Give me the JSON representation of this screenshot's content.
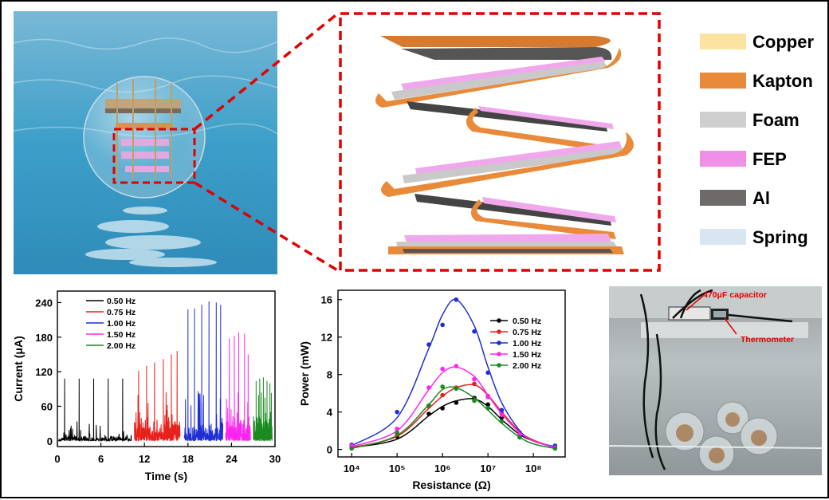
{
  "legend_materials": [
    {
      "label": "Copper",
      "color": "#fbe4a0"
    },
    {
      "label": "Kapton",
      "color": "#e88a3a"
    },
    {
      "label": "Foam",
      "color": "#cfcfcf"
    },
    {
      "label": "FEP",
      "color": "#ef8fe6"
    },
    {
      "label": "Al",
      "color": "#6e6a6a"
    },
    {
      "label": "Spring",
      "color": "#d9e6f2"
    }
  ],
  "photo": {
    "capacitor_label": "470μF capacitor",
    "thermometer_label": "Thermometer"
  },
  "chart_data": [
    {
      "type": "line",
      "xlabel": "Time (s)",
      "ylabel": "Current (μA)",
      "xlim": [
        0,
        30
      ],
      "ylim": [
        -10,
        260
      ],
      "xticks": [
        0,
        6,
        12,
        18,
        24,
        30
      ],
      "yticks": [
        0,
        60,
        120,
        180,
        240
      ],
      "series": [
        {
          "name": "0.50 Hz",
          "color": "#000000",
          "t_range": [
            0.2,
            10.2
          ],
          "peaks": [
            {
              "t": 1.0,
              "v": 108
            },
            {
              "t": 3.0,
              "v": 108
            },
            {
              "t": 5.0,
              "v": 108
            },
            {
              "t": 7.0,
              "v": 108
            },
            {
              "t": 9.0,
              "v": 108
            }
          ]
        },
        {
          "name": "0.75 Hz",
          "color": "#e8201c",
          "t_range": [
            10.6,
            16.9
          ],
          "peaks": [
            {
              "t": 11.2,
              "v": 122
            },
            {
              "t": 12.3,
              "v": 130
            },
            {
              "t": 13.4,
              "v": 136
            },
            {
              "t": 14.6,
              "v": 142
            },
            {
              "t": 15.7,
              "v": 150
            },
            {
              "t": 16.5,
              "v": 156
            }
          ]
        },
        {
          "name": "1.00 Hz",
          "color": "#1f2fd6",
          "t_range": [
            17.5,
            22.8
          ],
          "peaks": [
            {
              "t": 18.0,
              "v": 228
            },
            {
              "t": 18.9,
              "v": 230
            },
            {
              "t": 19.9,
              "v": 236
            },
            {
              "t": 20.9,
              "v": 242
            },
            {
              "t": 21.9,
              "v": 240
            },
            {
              "t": 22.5,
              "v": 236
            }
          ]
        },
        {
          "name": "1.50 Hz",
          "color": "#ff25f0",
          "t_range": [
            23.2,
            26.6
          ],
          "peaks": [
            {
              "t": 23.7,
              "v": 178
            },
            {
              "t": 24.4,
              "v": 182
            },
            {
              "t": 25.0,
              "v": 188
            },
            {
              "t": 25.8,
              "v": 186
            },
            {
              "t": 26.3,
              "v": 150
            }
          ]
        },
        {
          "name": "2.00 Hz",
          "color": "#1b8a20",
          "t_range": [
            27.0,
            29.6
          ],
          "peaks": [
            {
              "t": 27.4,
              "v": 104
            },
            {
              "t": 27.9,
              "v": 108
            },
            {
              "t": 28.4,
              "v": 110
            },
            {
              "t": 28.9,
              "v": 104
            },
            {
              "t": 29.3,
              "v": 100
            }
          ]
        }
      ]
    },
    {
      "type": "line",
      "xscale": "log",
      "xlabel": "Resistance (Ω)",
      "ylabel": "Power (mW)",
      "xlim": [
        5000,
        500000000
      ],
      "ylim": [
        -0.8,
        17
      ],
      "xtick_labels": [
        "10⁴",
        "10⁵",
        "10⁶",
        "10⁷",
        "10⁸"
      ],
      "xticks": [
        10000,
        100000,
        1000000,
        10000000,
        100000000
      ],
      "yticks": [
        0,
        4,
        8,
        12,
        16
      ],
      "series": [
        {
          "name": "0.50 Hz",
          "color": "#000000",
          "x": [
            10000,
            100000,
            500000,
            1000000,
            2000000,
            5000000,
            10000000,
            20000000,
            50000000,
            300000000
          ],
          "y": [
            0.3,
            1.4,
            3.8,
            4.4,
            5.0,
            5.5,
            4.8,
            3.4,
            1.6,
            0.2
          ],
          "fit": [
            [
              10000,
              0.2
            ],
            [
              100000,
              1.1
            ],
            [
              500000,
              3.6
            ],
            [
              1000000,
              4.6
            ],
            [
              2000000,
              5.2
            ],
            [
              5000000,
              5.4
            ],
            [
              10000000,
              4.6
            ],
            [
              20000000,
              3.2
            ],
            [
              50000000,
              1.6
            ],
            [
              100000000,
              0.9
            ],
            [
              300000000,
              0.2
            ]
          ]
        },
        {
          "name": "0.75 Hz",
          "color": "#e8201c",
          "x": [
            10000,
            100000,
            500000,
            1000000,
            2000000,
            5000000,
            10000000,
            20000000,
            50000000,
            300000000
          ],
          "y": [
            0.3,
            1.6,
            4.6,
            5.8,
            6.6,
            7.0,
            5.7,
            3.9,
            1.8,
            0.2
          ],
          "fit": [
            [
              10000,
              0.2
            ],
            [
              100000,
              1.4
            ],
            [
              500000,
              4.4
            ],
            [
              1000000,
              5.7
            ],
            [
              2000000,
              6.6
            ],
            [
              5000000,
              6.9
            ],
            [
              10000000,
              5.8
            ],
            [
              20000000,
              4.0
            ],
            [
              50000000,
              1.9
            ],
            [
              100000000,
              1.0
            ],
            [
              300000000,
              0.2
            ]
          ]
        },
        {
          "name": "1.00 Hz",
          "color": "#1f2fd6",
          "x": [
            10000,
            100000,
            500000,
            1000000,
            2000000,
            5000000,
            10000000,
            20000000,
            50000000,
            300000000
          ],
          "y": [
            0.5,
            4.0,
            11.2,
            13.3,
            16.0,
            12.6,
            8.2,
            4.2,
            1.3,
            0.4
          ],
          "fit": [
            [
              10000,
              0.4
            ],
            [
              100000,
              3.4
            ],
            [
              500000,
              10.8
            ],
            [
              1000000,
              14.4
            ],
            [
              2000000,
              16.0
            ],
            [
              5000000,
              13.2
            ],
            [
              10000000,
              8.8
            ],
            [
              20000000,
              5.0
            ],
            [
              50000000,
              2.0
            ],
            [
              100000000,
              0.9
            ],
            [
              300000000,
              0.3
            ]
          ]
        },
        {
          "name": "1.50 Hz",
          "color": "#ff25f0",
          "x": [
            10000,
            100000,
            500000,
            1000000,
            2000000,
            5000000,
            10000000,
            20000000,
            50000000,
            300000000
          ],
          "y": [
            0.4,
            2.2,
            6.6,
            8.6,
            8.9,
            7.5,
            5.6,
            3.7,
            1.6,
            0.2
          ],
          "fit": [
            [
              10000,
              0.3
            ],
            [
              100000,
              2.0
            ],
            [
              500000,
              6.4
            ],
            [
              1000000,
              8.2
            ],
            [
              2000000,
              8.8
            ],
            [
              5000000,
              7.8
            ],
            [
              10000000,
              5.8
            ],
            [
              20000000,
              3.8
            ],
            [
              50000000,
              1.8
            ],
            [
              100000000,
              0.9
            ],
            [
              300000000,
              0.2
            ]
          ]
        },
        {
          "name": "2.00 Hz",
          "color": "#1b8a20",
          "x": [
            10000,
            100000,
            500000,
            1000000,
            2000000,
            5000000,
            10000000,
            20000000,
            50000000,
            300000000
          ],
          "y": [
            0.1,
            1.8,
            4.7,
            6.7,
            6.5,
            5.2,
            4.4,
            3.0,
            1.3,
            0.1
          ],
          "fit": [
            [
              10000,
              0.1
            ],
            [
              100000,
              1.5
            ],
            [
              500000,
              4.8
            ],
            [
              1000000,
              6.4
            ],
            [
              2000000,
              6.6
            ],
            [
              5000000,
              5.5
            ],
            [
              10000000,
              4.2
            ],
            [
              20000000,
              2.8
            ],
            [
              50000000,
              1.3
            ],
            [
              100000000,
              0.6
            ],
            [
              300000000,
              0.1
            ]
          ]
        }
      ]
    }
  ]
}
